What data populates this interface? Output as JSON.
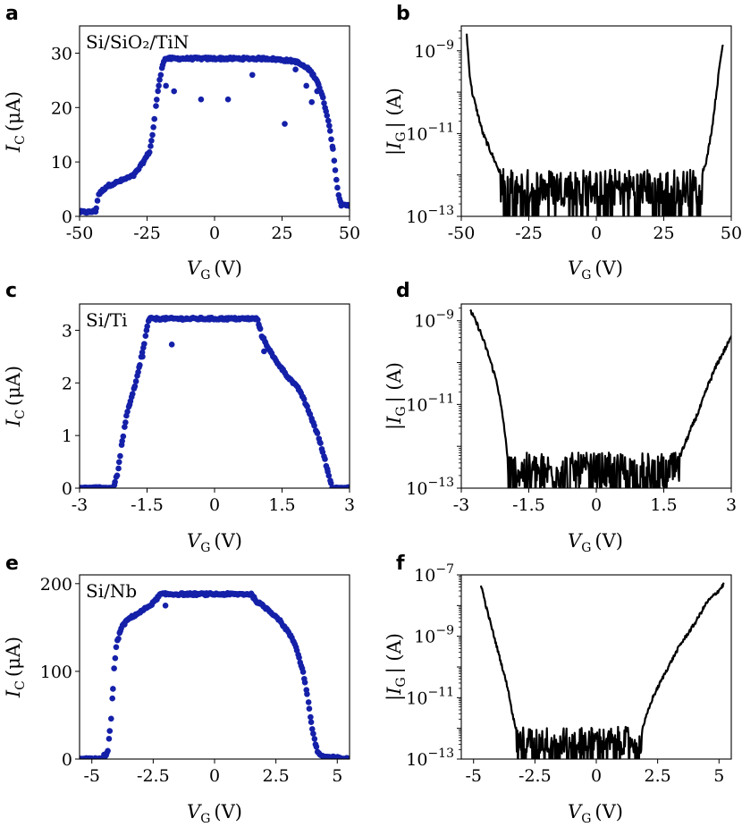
{
  "figure": {
    "panels": {
      "a": {
        "letter": "a",
        "inset_label": "Si/SiO₂/TiN",
        "ylabel": "I",
        "ysub": "C",
        "yunit": "(μA)",
        "xlabel": "V",
        "xsub": "G",
        "xunit": "(V)"
      },
      "b": {
        "letter": "b",
        "ylabel": "|I",
        "ysub": "G",
        "yunit": "| (A)",
        "xlabel": "V",
        "xsub": "G",
        "xunit": "(V)"
      },
      "c": {
        "letter": "c",
        "inset_label": "Si/Ti",
        "ylabel": "I",
        "ysub": "C",
        "yunit": "(μA)",
        "xlabel": "V",
        "xsub": "G",
        "xunit": "(V)"
      },
      "d": {
        "letter": "d",
        "ylabel": "|I",
        "ysub": "G",
        "yunit": "| (A)",
        "xlabel": "V",
        "xsub": "G",
        "xunit": "(V)"
      },
      "e": {
        "letter": "e",
        "inset_label": "Si/Nb",
        "ylabel": "I",
        "ysub": "C",
        "yunit": "(μA)",
        "xlabel": "V",
        "xsub": "G",
        "xunit": "(V)"
      },
      "f": {
        "letter": "f",
        "ylabel": "|I",
        "ysub": "G",
        "yunit": "| (A)",
        "xlabel": "V",
        "xsub": "G",
        "xunit": "(V)"
      }
    },
    "colors": {
      "scatter": "#1420a8",
      "line": "#000000",
      "axes": "#000000"
    }
  },
  "chart_data": [
    {
      "id": "a",
      "type": "scatter",
      "title": "Si/SiO2/TiN",
      "xlabel": "V_G (V)",
      "ylabel": "I_C (μA)",
      "xlim": [
        -50,
        50
      ],
      "ylim": [
        0,
        35
      ],
      "xticks": [
        -50,
        -25,
        0,
        25,
        50
      ],
      "xtick_labels": [
        "-50",
        "-25",
        "0",
        "25",
        "50"
      ],
      "yticks": [
        0,
        10,
        20,
        30
      ],
      "ytick_labels": [
        "0",
        "10",
        "20",
        "30"
      ],
      "profile": [
        [
          -46,
          0.8
        ],
        [
          -44,
          1.0
        ],
        [
          -43,
          4
        ],
        [
          -40,
          5.5
        ],
        [
          -35,
          6.5
        ],
        [
          -30,
          7.5
        ],
        [
          -27,
          9.5
        ],
        [
          -24,
          12
        ],
        [
          -23,
          15
        ],
        [
          -22,
          19
        ],
        [
          -21,
          23
        ],
        [
          -20,
          26
        ],
        [
          -19,
          28.5
        ],
        [
          -18,
          29
        ],
        [
          20,
          29
        ],
        [
          30,
          28.5
        ],
        [
          35,
          27
        ],
        [
          38,
          25
        ],
        [
          40,
          22
        ],
        [
          42,
          18
        ],
        [
          44,
          12
        ],
        [
          45,
          7
        ],
        [
          46,
          4
        ],
        [
          47,
          2
        ]
      ],
      "outliers": [
        [
          -18,
          24
        ],
        [
          -15,
          23
        ],
        [
          -5,
          21.5
        ],
        [
          5,
          21.5
        ],
        [
          14,
          26
        ],
        [
          26,
          17
        ],
        [
          30,
          27
        ],
        [
          36,
          21
        ],
        [
          34,
          24
        ],
        [
          38,
          23
        ]
      ]
    },
    {
      "id": "b",
      "type": "line",
      "scale_y": "log",
      "xlabel": "V_G (V)",
      "ylabel": "|I_G| (A)",
      "xlim": [
        -50,
        50
      ],
      "ylim_exp": [
        -13,
        -8.4
      ],
      "xticks": [
        -50,
        -25,
        0,
        25,
        50
      ],
      "xtick_labels": [
        "-50",
        "-25",
        "0",
        "25",
        "50"
      ],
      "yticks_exp": [
        -13,
        -11,
        -9
      ],
      "ytick_labels": [
        "10",
        "10",
        "10"
      ],
      "ytick_exponents": [
        "−13",
        "−11",
        "−9"
      ],
      "envelope_log": [
        [
          -48,
          -8.6
        ],
        [
          -47,
          -9.5
        ],
        [
          -46,
          -10.0
        ],
        [
          -44,
          -10.5
        ],
        [
          -42,
          -11.0
        ],
        [
          -40,
          -11.3
        ],
        [
          -38,
          -11.6
        ],
        [
          -36,
          -11.9
        ],
        [
          -34,
          -12.1
        ],
        [
          36,
          -12.1
        ],
        [
          39,
          -12.0
        ],
        [
          41,
          -11.6
        ],
        [
          43,
          -10.8
        ],
        [
          44.5,
          -10.0
        ],
        [
          46,
          -9.2
        ],
        [
          47,
          -8.8
        ]
      ],
      "noise_floor_log": -12.3
    },
    {
      "id": "c",
      "type": "scatter",
      "title": "Si/Ti",
      "xlabel": "V_G (V)",
      "ylabel": "I_C (μA)",
      "xlim": [
        -3,
        3
      ],
      "ylim": [
        0,
        3.5
      ],
      "xticks": [
        -3,
        -1.5,
        0,
        1.5,
        3
      ],
      "xtick_labels": [
        "-3",
        "-1.5",
        "0",
        "1.5",
        "3"
      ],
      "yticks": [
        0,
        1,
        2,
        3
      ],
      "ytick_labels": [
        "0",
        "1",
        "2",
        "3"
      ],
      "profile": [
        [
          -2.7,
          0
        ],
        [
          -2.25,
          0
        ],
        [
          -2.15,
          0.3
        ],
        [
          -2.05,
          0.9
        ],
        [
          -1.95,
          1.4
        ],
        [
          -1.85,
          1.7
        ],
        [
          -1.75,
          2.0
        ],
        [
          -1.65,
          2.4
        ],
        [
          -1.55,
          2.8
        ],
        [
          -1.5,
          3.05
        ],
        [
          -1.45,
          3.22
        ],
        [
          0.95,
          3.22
        ],
        [
          1.05,
          2.9
        ],
        [
          1.3,
          2.5
        ],
        [
          1.6,
          2.15
        ],
        [
          1.9,
          1.85
        ],
        [
          2.1,
          1.45
        ],
        [
          2.3,
          1.0
        ],
        [
          2.45,
          0.55
        ],
        [
          2.55,
          0.2
        ],
        [
          2.62,
          0
        ],
        [
          2.95,
          0
        ]
      ],
      "outliers": [
        [
          -0.95,
          2.73
        ],
        [
          -1.6,
          2.5
        ],
        [
          1.1,
          2.6
        ]
      ]
    },
    {
      "id": "d",
      "type": "line",
      "scale_y": "log",
      "xlabel": "V_G (V)",
      "ylabel": "|I_G| (A)",
      "xlim": [
        -3,
        3
      ],
      "ylim_exp": [
        -13,
        -8.6
      ],
      "xticks": [
        -3,
        -1.5,
        0,
        1.5,
        3
      ],
      "xtick_labels": [
        "-3",
        "-1.5",
        "0",
        "1.5",
        "3"
      ],
      "yticks_exp": [
        -13,
        -11,
        -9
      ],
      "ytick_labels": [
        "10",
        "10",
        "10"
      ],
      "ytick_exponents": [
        "−13",
        "−11",
        "−9"
      ],
      "envelope_log": [
        [
          -2.8,
          -8.75
        ],
        [
          -2.6,
          -9.2
        ],
        [
          -2.4,
          -9.8
        ],
        [
          -2.2,
          -10.5
        ],
        [
          -2.05,
          -11.5
        ],
        [
          -1.98,
          -12.2
        ],
        [
          -1.9,
          -12.4
        ],
        [
          1.8,
          -12.4
        ],
        [
          1.95,
          -12.0
        ],
        [
          2.1,
          -11.6
        ],
        [
          2.3,
          -11.1
        ],
        [
          2.5,
          -10.5
        ],
        [
          2.7,
          -10.0
        ],
        [
          2.9,
          -9.6
        ],
        [
          3.0,
          -9.4
        ]
      ],
      "noise_floor_log": -12.6
    },
    {
      "id": "e",
      "type": "scatter",
      "title": "Si/Nb",
      "xlabel": "V_G (V)",
      "ylabel": "I_C (μA)",
      "xlim": [
        -5.5,
        5.5
      ],
      "ylim": [
        0,
        210
      ],
      "xticks": [
        -5,
        -2.5,
        0,
        2.5,
        5
      ],
      "xtick_labels": [
        "-5",
        "-2.5",
        "0",
        "2.5",
        "5"
      ],
      "yticks": [
        0,
        100,
        200
      ],
      "ytick_labels": [
        "0",
        "100",
        "200"
      ],
      "profile": [
        [
          -5.5,
          0
        ],
        [
          -4.5,
          0
        ],
        [
          -4.35,
          10
        ],
        [
          -4.2,
          50
        ],
        [
          -4.1,
          100
        ],
        [
          -4.0,
          130
        ],
        [
          -3.8,
          150
        ],
        [
          -3.5,
          160
        ],
        [
          -3.0,
          168
        ],
        [
          -2.5,
          178
        ],
        [
          -2.2,
          188
        ],
        [
          1.5,
          188
        ],
        [
          1.7,
          180
        ],
        [
          2.2,
          170
        ],
        [
          2.6,
          160
        ],
        [
          3.0,
          145
        ],
        [
          3.3,
          130
        ],
        [
          3.6,
          100
        ],
        [
          3.8,
          70
        ],
        [
          4.0,
          30
        ],
        [
          4.2,
          8
        ],
        [
          4.4,
          3
        ],
        [
          5.5,
          0
        ]
      ],
      "outliers": [
        [
          -2.0,
          175
        ],
        [
          -4.5,
          5
        ]
      ]
    },
    {
      "id": "f",
      "type": "line",
      "scale_y": "log",
      "xlabel": "V_G (V)",
      "ylabel": "|I_G| (A)",
      "xlim": [
        -5.5,
        5.5
      ],
      "ylim_exp": [
        -13,
        -7
      ],
      "xticks": [
        -5,
        -2.5,
        0,
        2.5,
        5
      ],
      "xtick_labels": [
        "-5",
        "-2.5",
        "0",
        "2.5",
        "5"
      ],
      "yticks_exp": [
        -13,
        -11,
        -9,
        -7
      ],
      "ytick_labels": [
        "10",
        "10",
        "10",
        "10"
      ],
      "ytick_exponents": [
        "−13",
        "−11",
        "−9",
        "−7"
      ],
      "envelope_log": [
        [
          -4.7,
          -7.3
        ],
        [
          -4.5,
          -8.0
        ],
        [
          -4.2,
          -8.9
        ],
        [
          -3.9,
          -9.8
        ],
        [
          -3.6,
          -10.7
        ],
        [
          -3.4,
          -11.6
        ],
        [
          -3.2,
          -12.2
        ],
        [
          1.8,
          -12.2
        ],
        [
          2.0,
          -11.7
        ],
        [
          2.3,
          -11.0
        ],
        [
          2.8,
          -10.2
        ],
        [
          3.4,
          -9.3
        ],
        [
          4.0,
          -8.6
        ],
        [
          4.5,
          -7.9
        ],
        [
          5.0,
          -7.5
        ],
        [
          5.2,
          -7.3
        ]
      ],
      "noise_floor_log": -12.4
    }
  ]
}
